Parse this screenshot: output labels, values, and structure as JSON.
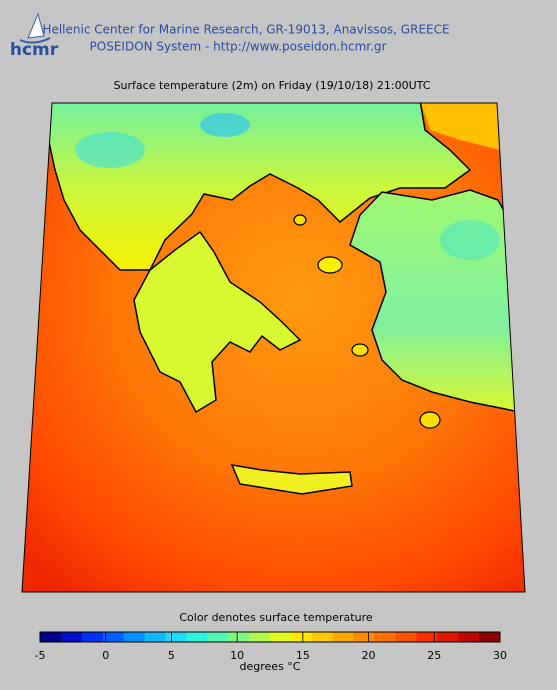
{
  "header": {
    "logo": "hcmr",
    "lines": [
      "Hellenic Center for Marine Research, GR-19013, Anavissos, GREECE",
      "POSEIDON System - http://www.poseidon.hcmr.gr"
    ]
  },
  "map": {
    "title": "Surface temperature (2m) on Friday (19/10/18) 21:00UTC"
  },
  "colorbar": {
    "label": "Color denotes surface temperature",
    "units": "degrees °C",
    "lim": [
      -5,
      30
    ],
    "ticks": [
      -5,
      0,
      5,
      10,
      15,
      20,
      25,
      30
    ],
    "colors": [
      "#00008c",
      "#0010c8",
      "#0030f0",
      "#0060ff",
      "#0090ff",
      "#10b8ff",
      "#20d8f8",
      "#30f0e0",
      "#50f8b0",
      "#80f880",
      "#b0f850",
      "#e0f820",
      "#ffe800",
      "#ffc800",
      "#ffa800",
      "#ff8c00",
      "#ff6e00",
      "#ff5000",
      "#f83000",
      "#e01800",
      "#c00800",
      "#900000"
    ]
  }
}
